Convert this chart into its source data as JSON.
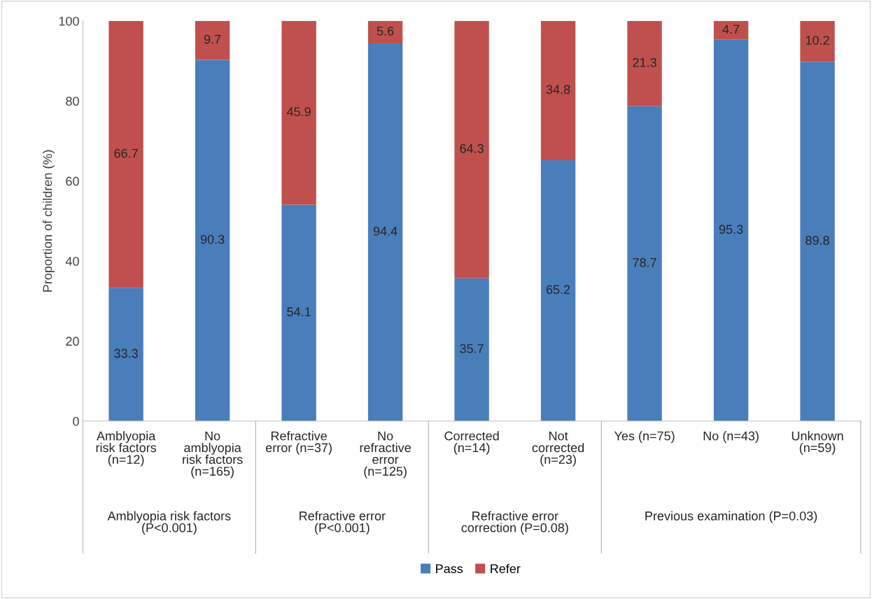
{
  "chart_data": {
    "type": "bar",
    "stacked": true,
    "ylabel": "Proportion of children (%)",
    "categories": [
      "Amblyopia\nrisk factors\n(n=12)",
      "No\namblyopia\nrisk factors\n(n=165)",
      "Refractive\nerror (n=37)",
      "No\nrefractive\nerror\n(n=125)",
      "Corrected\n(n=14)",
      "Not\ncorrected\n(n=23)",
      "Yes (n=75)",
      "No (n=43)",
      "Unknown\n(n=59)"
    ],
    "series": [
      {
        "name": "Pass",
        "color": "#4a7ebb",
        "values": [
          33.3,
          90.3,
          54.1,
          94.4,
          35.7,
          65.2,
          78.7,
          95.3,
          89.8
        ]
      },
      {
        "name": "Refer",
        "color": "#c0504d",
        "values": [
          66.7,
          9.7,
          45.9,
          5.6,
          64.3,
          34.8,
          21.3,
          4.7,
          10.2
        ]
      }
    ],
    "ylim": [
      0,
      100
    ],
    "yticks": [
      0,
      20,
      40,
      60,
      80,
      100
    ],
    "grid": false,
    "legend": "bottom",
    "data_labels": true,
    "annotations": [
      "Amblyopia risk factors\n(P<0.001)",
      "Refractive error\n(P<0.001)",
      "Refractive error\ncorrection (P=0.08)",
      "Previous examination (P=0.03)"
    ]
  }
}
